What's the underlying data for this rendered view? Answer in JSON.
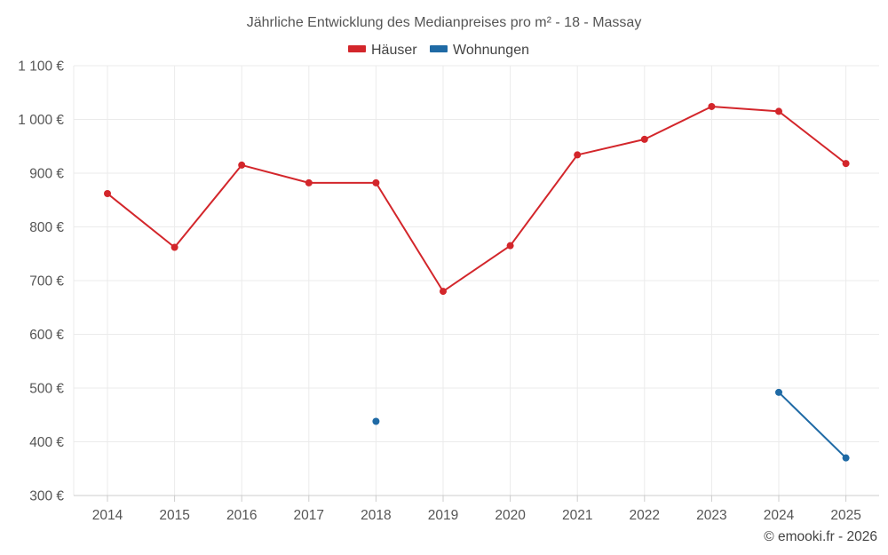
{
  "chart_data": {
    "type": "line",
    "title": "Jährliche Entwicklung des Medianpreises pro m² - 18 - Massay",
    "categories": [
      "2014",
      "2015",
      "2016",
      "2017",
      "2018",
      "2019",
      "2020",
      "2021",
      "2022",
      "2023",
      "2024",
      "2025"
    ],
    "series": [
      {
        "name": "Häuser",
        "color": "#d3262b",
        "values": [
          862,
          762,
          915,
          882,
          882,
          680,
          765,
          934,
          963,
          1024,
          1015,
          918
        ]
      },
      {
        "name": "Wohnungen",
        "color": "#1f6aa5",
        "values": [
          null,
          null,
          null,
          null,
          438,
          null,
          null,
          null,
          null,
          null,
          492,
          370
        ]
      }
    ],
    "ylim": [
      300,
      1100
    ],
    "yticks": [
      300,
      400,
      500,
      600,
      700,
      800,
      900,
      1000,
      1100
    ],
    "ytick_labels": [
      "300 €",
      "400 €",
      "500 €",
      "600 €",
      "700 €",
      "800 €",
      "900 €",
      "1 000 €",
      "1 100 €"
    ],
    "grid": true,
    "legend_position": "top-center",
    "credit": "© emooki.fr - 2026"
  }
}
